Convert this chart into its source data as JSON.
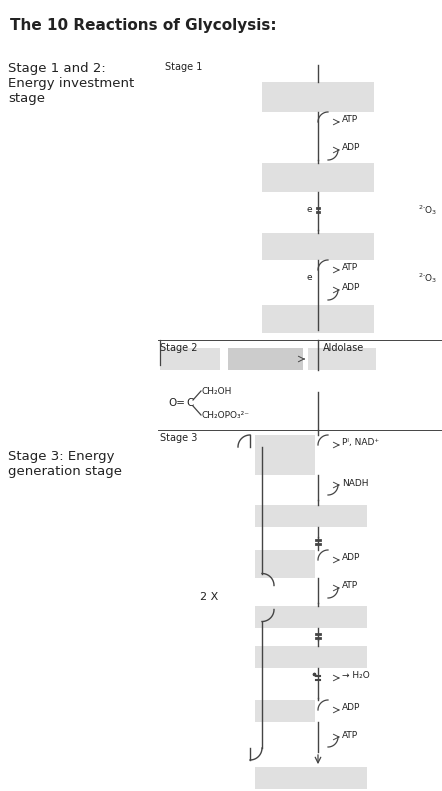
{
  "title": "The 10 Reactions of Glycolysis:",
  "stage12_label": "Stage 1 and 2:\nEnergy investment\nstage",
  "stage3_label": "Stage 3: Energy\ngeneration stage",
  "stage1_text": "Stage 1",
  "stage2_text": "Stage 2",
  "stage3_text": "Stage 3",
  "aldolase_text": "Aldolase",
  "atp_text": "ATP",
  "adp_text": "ADP",
  "nadh_text": "NADH",
  "nad_text": "Pᴵ, NAD⁺",
  "h2o_text": "→ H₂O",
  "twox_text": "2 X",
  "e_text": "e",
  "ch2oh_text": "CH₂OH",
  "o_text": "O=",
  "c_text": "C",
  "ch2opo3_text": "CH₂OPO₃²⁻",
  "bg_color": "#ffffff",
  "box_color": "#cccccc",
  "box_color2": "#e0e0e0",
  "line_color": "#444444",
  "text_color": "#222222"
}
